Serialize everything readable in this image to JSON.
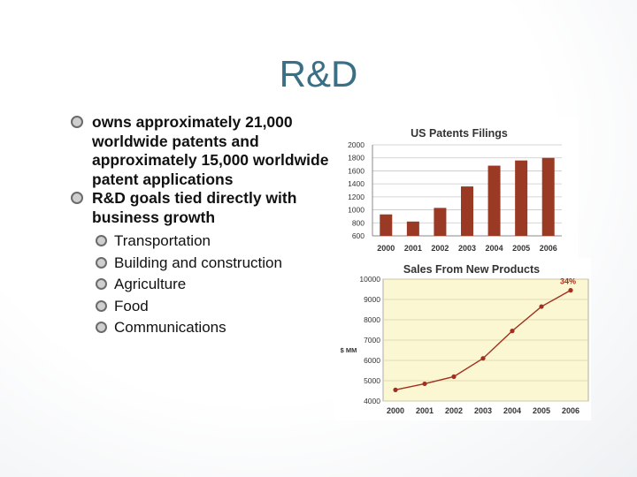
{
  "slide": {
    "title": "R&D",
    "bullets": [
      "owns approximately 21,000 worldwide patents and approximately 15,000 worldwide patent applications",
      "R&D goals tied directly with business growth"
    ],
    "sub_bullets": [
      "Transportation",
      "Building and construction",
      "Agriculture",
      "Food",
      "Communications"
    ]
  },
  "chart_data": [
    {
      "type": "bar",
      "title": "US Patents Filings",
      "categories": [
        "2000",
        "2001",
        "2002",
        "2003",
        "2004",
        "2005",
        "2006"
      ],
      "values": [
        930,
        820,
        1030,
        1360,
        1680,
        1760,
        1800
      ],
      "yticks": [
        600,
        800,
        1000,
        1200,
        1400,
        1600,
        1800,
        2000
      ],
      "ylim": [
        600,
        2000
      ],
      "color": "#9b3a24"
    },
    {
      "type": "line",
      "title": "Sales From New Products",
      "ylabel": "$ MM",
      "categories": [
        "2000",
        "2001",
        "2002",
        "2003",
        "2004",
        "2005",
        "2006"
      ],
      "values": [
        4550,
        4850,
        5200,
        6100,
        7450,
        8650,
        9450
      ],
      "yticks": [
        4000,
        5000,
        6000,
        7000,
        8000,
        9000,
        10000
      ],
      "ylim": [
        4000,
        10000
      ],
      "annotation": "34%",
      "color": "#a03020"
    }
  ]
}
